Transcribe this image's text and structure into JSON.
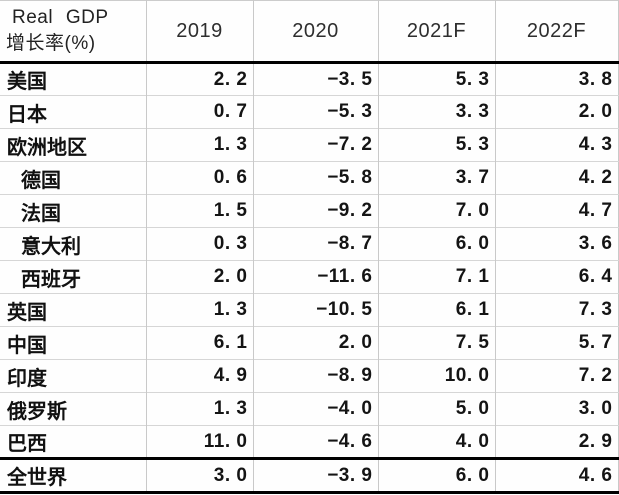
{
  "table": {
    "header": {
      "title_line1": "Real GDP",
      "title_line2": "增长率(%)",
      "columns": [
        "2019",
        "2020",
        "2021F",
        "2022F"
      ]
    },
    "rows": [
      {
        "label": "美国",
        "indent": false,
        "total": false,
        "values": [
          "2.2",
          "-3.5",
          "5.3",
          "3.8"
        ]
      },
      {
        "label": "日本",
        "indent": false,
        "total": false,
        "values": [
          "0.7",
          "-5.3",
          "3.3",
          "2.0"
        ]
      },
      {
        "label": "欧洲地区",
        "indent": false,
        "total": false,
        "values": [
          "1.3",
          "-7.2",
          "5.3",
          "4.3"
        ]
      },
      {
        "label": "德国",
        "indent": true,
        "total": false,
        "values": [
          "0.6",
          "-5.8",
          "3.7",
          "4.2"
        ]
      },
      {
        "label": "法国",
        "indent": true,
        "total": false,
        "values": [
          "1.5",
          "-9.2",
          "7.0",
          "4.7"
        ]
      },
      {
        "label": "意大利",
        "indent": true,
        "total": false,
        "values": [
          "0.3",
          "-8.7",
          "6.0",
          "3.6"
        ]
      },
      {
        "label": "西班牙",
        "indent": true,
        "total": false,
        "values": [
          "2.0",
          "-11.6",
          "7.1",
          "6.4"
        ]
      },
      {
        "label": "英国",
        "indent": false,
        "total": false,
        "values": [
          "1.3",
          "-10.5",
          "6.1",
          "7.3"
        ]
      },
      {
        "label": "中国",
        "indent": false,
        "total": false,
        "values": [
          "6.1",
          "2.0",
          "7.5",
          "5.7"
        ]
      },
      {
        "label": "印度",
        "indent": false,
        "total": false,
        "values": [
          "4.9",
          "-8.9",
          "10.0",
          "7.2"
        ]
      },
      {
        "label": "俄罗斯",
        "indent": false,
        "total": false,
        "values": [
          "1.3",
          "-4.0",
          "5.0",
          "3.0"
        ]
      },
      {
        "label": "巴西",
        "indent": false,
        "total": false,
        "values": [
          "11.0",
          "-4.6",
          "4.0",
          "2.9"
        ]
      },
      {
        "label": "全世界",
        "indent": false,
        "total": true,
        "values": [
          "3.0",
          "-3.9",
          "6.0",
          "4.6"
        ]
      }
    ],
    "colors": {
      "grid_line": "#c9c9c9",
      "heavy_line": "#000000",
      "text": "#141414",
      "background": "#ffffff"
    }
  },
  "chart_data": {
    "type": "table",
    "title": "Real GDP 增长率(%)",
    "categories": [
      "2019",
      "2020",
      "2021F",
      "2022F"
    ],
    "series": [
      {
        "name": "美国",
        "values": [
          2.2,
          -3.5,
          5.3,
          3.8
        ]
      },
      {
        "name": "日本",
        "values": [
          0.7,
          -5.3,
          3.3,
          2.0
        ]
      },
      {
        "name": "欧洲地区",
        "values": [
          1.3,
          -7.2,
          5.3,
          4.3
        ]
      },
      {
        "name": "德国",
        "values": [
          0.6,
          -5.8,
          3.7,
          4.2
        ]
      },
      {
        "name": "法国",
        "values": [
          1.5,
          -9.2,
          7.0,
          4.7
        ]
      },
      {
        "name": "意大利",
        "values": [
          0.3,
          -8.7,
          6.0,
          3.6
        ]
      },
      {
        "name": "西班牙",
        "values": [
          2.0,
          -11.6,
          7.1,
          6.4
        ]
      },
      {
        "name": "英国",
        "values": [
          1.3,
          -10.5,
          6.1,
          7.3
        ]
      },
      {
        "name": "中国",
        "values": [
          6.1,
          2.0,
          7.5,
          5.7
        ]
      },
      {
        "name": "印度",
        "values": [
          4.9,
          -8.9,
          10.0,
          7.2
        ]
      },
      {
        "name": "俄罗斯",
        "values": [
          1.3,
          -4.0,
          5.0,
          3.0
        ]
      },
      {
        "name": "巴西",
        "values": [
          11.0,
          -4.6,
          4.0,
          2.9
        ]
      },
      {
        "name": "全世界",
        "values": [
          3.0,
          -3.9,
          6.0,
          4.6
        ]
      }
    ]
  }
}
